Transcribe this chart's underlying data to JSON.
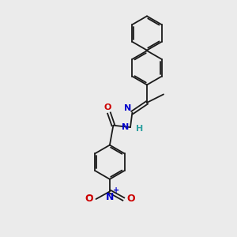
{
  "bg_color": "#ebebeb",
  "bond_color": "#1a1a1a",
  "bond_width": 1.3,
  "N_color": "#0000cc",
  "O_color": "#cc0000",
  "H_color": "#2ca0a0",
  "figsize": [
    3.0,
    3.0
  ],
  "dpi": 100,
  "xlim": [
    0,
    10
  ],
  "ylim": [
    0,
    10
  ]
}
